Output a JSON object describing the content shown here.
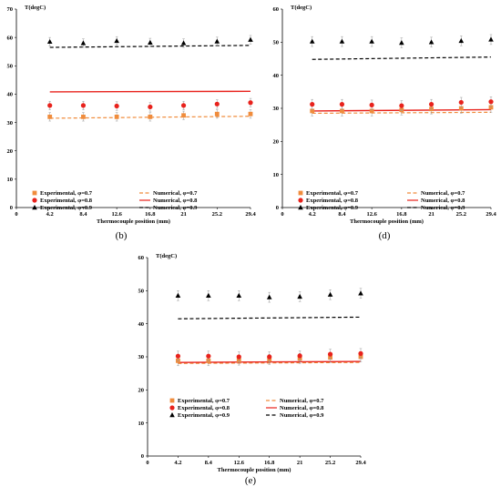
{
  "chart_data": [
    {
      "type": "scatter",
      "caption": "(b)",
      "ylabel": "T(degC)",
      "xlabel": "Thermocouple position (mm)",
      "xlim": [
        0,
        29.4
      ],
      "ylim": [
        0,
        70
      ],
      "xticks": [
        "0",
        "4.2",
        "8.4",
        "12.6",
        "16.8",
        "21",
        "25.2",
        "29.4"
      ],
      "yticks": [
        "0",
        "10",
        "20",
        "30",
        "40",
        "50",
        "60",
        "70"
      ],
      "x": [
        4.2,
        8.4,
        12.6,
        16.8,
        21,
        25.2,
        29.4
      ],
      "series": [
        {
          "name": "Experimental, φ=0.7",
          "kind": "points",
          "marker": "square",
          "color": "#f08c3c",
          "values": [
            32,
            32,
            32,
            32,
            32.5,
            33,
            33
          ],
          "error": 1.5
        },
        {
          "name": "Experimental, φ=0.8",
          "kind": "points",
          "marker": "circle",
          "color": "#e8221c",
          "values": [
            36,
            36,
            35.8,
            35.5,
            36,
            36.5,
            37
          ],
          "error": 1.5
        },
        {
          "name": "Experimental, φ=0.9",
          "kind": "points",
          "marker": "triangle",
          "color": "#000000",
          "values": [
            58.5,
            58,
            58.8,
            58.2,
            58,
            58.6,
            59.2
          ],
          "error": 1.5
        },
        {
          "name": "Numerical, φ=0.7",
          "kind": "line",
          "dash": "dashed",
          "color": "#f08c3c",
          "line": [
            [
              4.2,
              31.5
            ],
            [
              29.4,
              32.2
            ]
          ]
        },
        {
          "name": "Numerical, φ=0.8",
          "kind": "line",
          "dash": "solid",
          "color": "#e8221c",
          "line": [
            [
              4.2,
              40.8
            ],
            [
              29.4,
              41
            ]
          ]
        },
        {
          "name": "Numerical, φ=0.9",
          "kind": "line",
          "dash": "dashed",
          "color": "#000000",
          "line": [
            [
              4.2,
              56.5
            ],
            [
              29.4,
              57.2
            ]
          ]
        }
      ]
    },
    {
      "type": "scatter",
      "caption": "(d)",
      "ylabel": "T(degC)",
      "xlabel": "Thermocouple position (mm)",
      "xlim": [
        0,
        29.4
      ],
      "ylim": [
        0,
        60
      ],
      "xticks": [
        "0",
        "4.2",
        "8.4",
        "12.6",
        "16.8",
        "21",
        "25.2",
        "29.4"
      ],
      "yticks": [
        "0",
        "10",
        "20",
        "30",
        "40",
        "50",
        "60"
      ],
      "x": [
        4.2,
        8.4,
        12.6,
        16.8,
        21,
        25.2,
        29.4
      ],
      "series": [
        {
          "name": "Experimental, φ=0.7",
          "kind": "points",
          "marker": "square",
          "color": "#f08c3c",
          "values": [
            29.2,
            29.2,
            29.2,
            29.5,
            29.8,
            30,
            30.3
          ],
          "error": 1.5
        },
        {
          "name": "Experimental, φ=0.8",
          "kind": "points",
          "marker": "circle",
          "color": "#e8221c",
          "values": [
            31.2,
            31.2,
            31,
            30.8,
            31.2,
            31.8,
            32
          ],
          "error": 1.5
        },
        {
          "name": "Experimental, φ=0.9",
          "kind": "points",
          "marker": "triangle",
          "color": "#000000",
          "values": [
            50.2,
            50.2,
            50.2,
            49.8,
            50,
            50.4,
            50.8
          ],
          "error": 1.5
        },
        {
          "name": "Numerical, φ=0.7",
          "kind": "line",
          "dash": "dashed",
          "color": "#f08c3c",
          "line": [
            [
              4.2,
              28.5
            ],
            [
              29.4,
              28.8
            ]
          ]
        },
        {
          "name": "Numerical, φ=0.8",
          "kind": "line",
          "dash": "solid",
          "color": "#e8221c",
          "line": [
            [
              4.2,
              29.2
            ],
            [
              29.4,
              29.6
            ]
          ]
        },
        {
          "name": "Numerical, φ=0.9",
          "kind": "line",
          "dash": "dashed",
          "color": "#000000",
          "line": [
            [
              4.2,
              44.8
            ],
            [
              29.4,
              45.5
            ]
          ]
        }
      ]
    },
    {
      "type": "scatter",
      "caption": "(e)",
      "ylabel": "T(degC)",
      "xlabel": "Thermocouple position (mm)",
      "xlim": [
        0,
        29.4
      ],
      "ylim": [
        0,
        60
      ],
      "xticks": [
        "0",
        "4.2",
        "8.4",
        "12.6",
        "16.8",
        "21",
        "25.2",
        "29.4"
      ],
      "yticks": [
        "0",
        "10",
        "20",
        "30",
        "40",
        "50",
        "60"
      ],
      "x": [
        4.2,
        8.4,
        12.6,
        16.8,
        21,
        25.2,
        29.4
      ],
      "series": [
        {
          "name": "Experimental, φ=0.7",
          "kind": "points",
          "marker": "square",
          "color": "#f08c3c",
          "values": [
            28.8,
            28.8,
            29,
            29.2,
            29.5,
            29.8,
            30
          ],
          "error": 1.5
        },
        {
          "name": "Experimental, φ=0.8",
          "kind": "points",
          "marker": "circle",
          "color": "#e8221c",
          "values": [
            30.2,
            30.2,
            30,
            30,
            30.3,
            30.8,
            31
          ],
          "error": 1.5
        },
        {
          "name": "Experimental, φ=0.9",
          "kind": "points",
          "marker": "triangle",
          "color": "#000000",
          "values": [
            48.5,
            48.5,
            48.5,
            48,
            48.2,
            48.8,
            49.2
          ],
          "error": 1.5
        },
        {
          "name": "Numerical, φ=0.7",
          "kind": "line",
          "dash": "dashed",
          "color": "#f08c3c",
          "line": [
            [
              4.2,
              28
            ],
            [
              29.4,
              28.3
            ]
          ]
        },
        {
          "name": "Numerical, φ=0.8",
          "kind": "line",
          "dash": "solid",
          "color": "#e8221c",
          "line": [
            [
              4.2,
              28.3
            ],
            [
              29.4,
              28.6
            ]
          ]
        },
        {
          "name": "Numerical, φ=0.9",
          "kind": "line",
          "dash": "dashed",
          "color": "#000000",
          "line": [
            [
              4.2,
              41.5
            ],
            [
              29.4,
              42
            ]
          ]
        }
      ]
    }
  ]
}
